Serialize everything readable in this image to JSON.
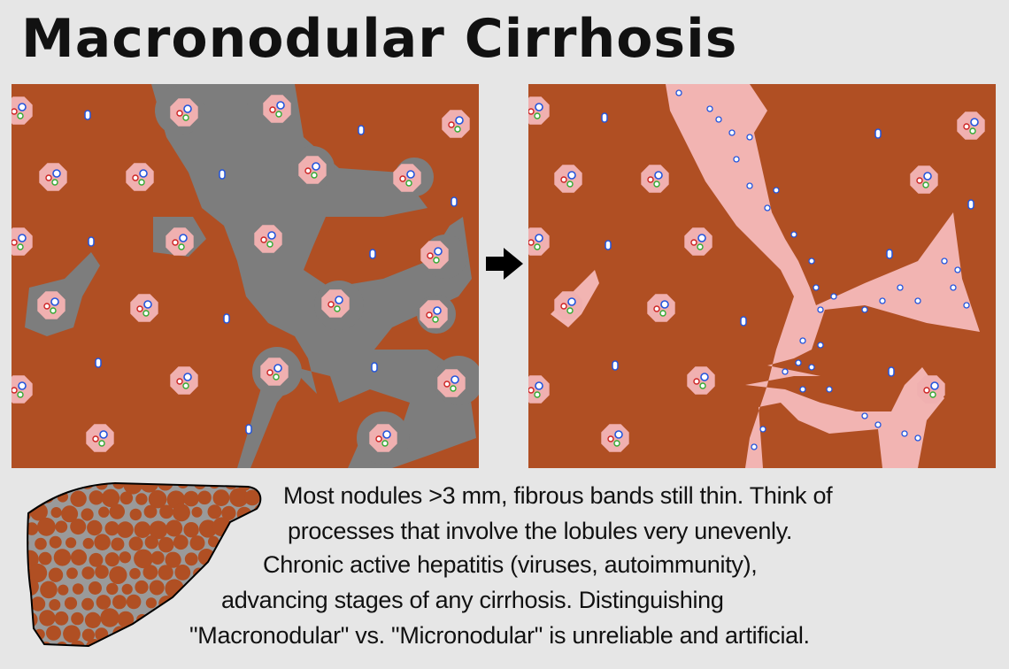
{
  "title": "Macronodular Cirrhosis",
  "caption": {
    "lines": [
      "Most nodules >3 mm, fibrous bands still thin. Think of",
      "processes that involve  the lobules very unevenly.",
      "Chronic active hepatitis (viruses,  autoimmunity),",
      "advancing stages of any cirrhosis.  Distinguishing",
      "\"Macronodular\" vs. \"Micronodular\" is unreliable and artificial."
    ]
  },
  "colors": {
    "parenchyma": "#b04f23",
    "fibrosis_early": "#7d7d7d",
    "fibrosis_late": "#f2b4b2",
    "portal_pink": "#f0b0b0",
    "background": "#e6e6e6"
  },
  "icons": {
    "arrow": "right-arrow-icon",
    "liver": "liver-icon"
  }
}
